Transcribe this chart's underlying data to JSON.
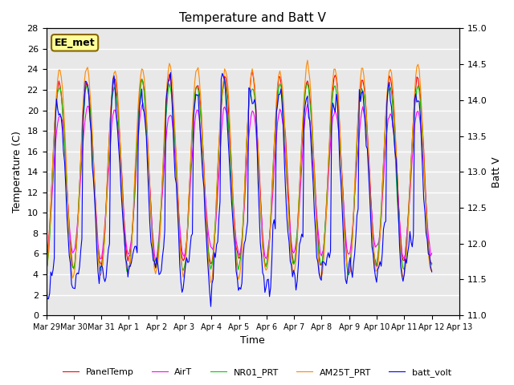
{
  "title": "Temperature and Batt V",
  "xlabel": "Time",
  "ylabel_left": "Temperature (C)",
  "ylabel_right": "Batt V",
  "ylim_left": [
    0,
    28
  ],
  "ylim_right": [
    11.0,
    15.0
  ],
  "annotation": "EE_met",
  "background_color": "#e8e8e8",
  "fig_background": "#ffffff",
  "series_colors": {
    "PanelTemp": "#ff0000",
    "AirT": "#ff00ff",
    "NR01_PRT": "#00cc00",
    "AM25T_PRT": "#ff8800",
    "batt_volt": "#0000ff"
  },
  "x_tick_labels": [
    "Mar 29",
    "Mar 30",
    "Mar 31",
    "Apr 1",
    "Apr 2",
    "Apr 3",
    "Apr 4",
    "Apr 5",
    "Apr 6",
    "Apr 7",
    "Apr 8",
    "Apr 9",
    "Apr 10",
    "Apr 11",
    "Apr 12",
    "Apr 13"
  ],
  "n_points": 336,
  "n_days": 15
}
